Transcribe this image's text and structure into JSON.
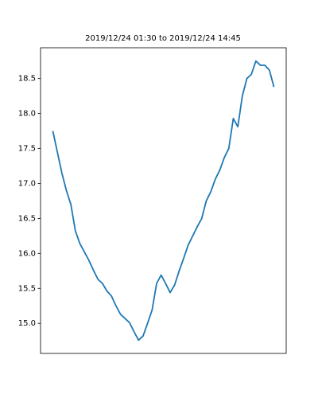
{
  "chart_data": {
    "type": "line",
    "title": "2019/12/24 01:30 to 2019/12/24 14:45",
    "color": "#1f77b4",
    "values": [
      17.75,
      17.45,
      17.15,
      16.9,
      16.7,
      16.32,
      16.14,
      16.02,
      15.9,
      15.76,
      15.63,
      15.57,
      15.46,
      15.39,
      15.25,
      15.13,
      15.07,
      15.01,
      14.88,
      14.76,
      14.82,
      15.0,
      15.19,
      15.57,
      15.69,
      15.57,
      15.44,
      15.55,
      15.75,
      15.93,
      16.12,
      16.25,
      16.38,
      16.5,
      16.75,
      16.88,
      17.06,
      17.19,
      17.37,
      17.5,
      17.93,
      17.81,
      18.25,
      18.5,
      18.56,
      18.75,
      18.69,
      18.69,
      18.62,
      18.38
    ],
    "ylim": [
      14.57,
      18.94
    ],
    "yticks": [
      {
        "value": 15,
        "label": "15.0"
      },
      15.5,
      {
        "value": 16,
        "label": "16.0"
      },
      16.5,
      {
        "value": 17,
        "label": "17.0"
      },
      17.5,
      {
        "value": 18,
        "label": "18.0"
      },
      18.5
    ],
    "grid": false
  }
}
